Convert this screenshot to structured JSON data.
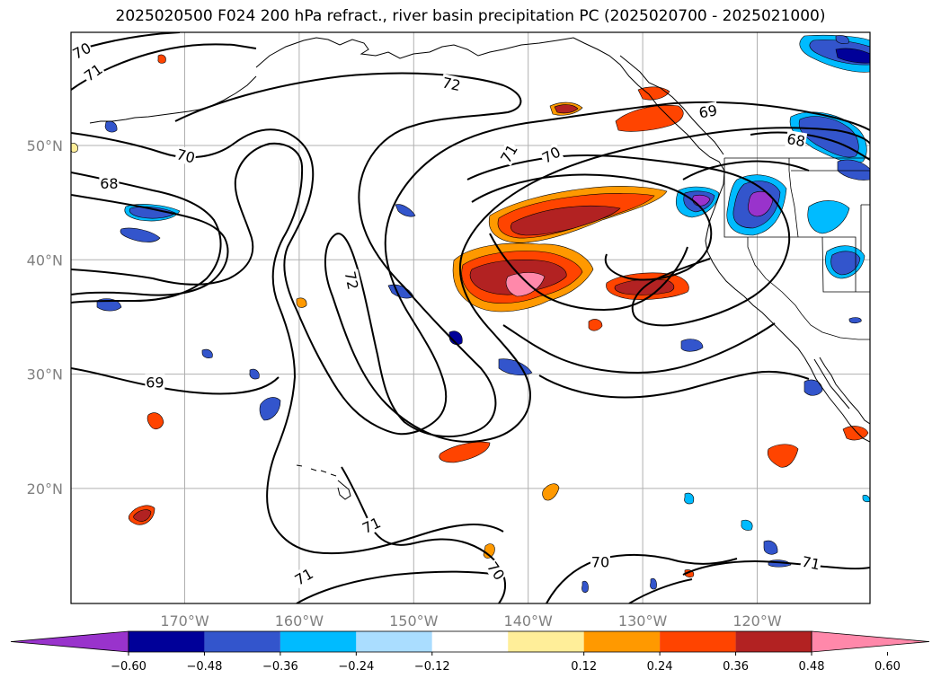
{
  "title": "2025020500 F024 200 hPa refract., river basin precipitation PC (2025020700 - 2025021000)",
  "lat_axis": [
    {
      "label": "50°N",
      "value": 50
    },
    {
      "label": "40°N",
      "value": 40
    },
    {
      "label": "30°N",
      "value": 30
    },
    {
      "label": "20°N",
      "value": 20
    }
  ],
  "lon_axis": [
    {
      "label": "170°W",
      "value": -170
    },
    {
      "label": "160°W",
      "value": -160
    },
    {
      "label": "150°W",
      "value": -150
    },
    {
      "label": "140°W",
      "value": -140
    },
    {
      "label": "130°W",
      "value": -130
    },
    {
      "label": "120°W",
      "value": -120
    }
  ],
  "contour_labels": [
    {
      "text": "70",
      "lon": -179.0,
      "lat": 58.3,
      "rot": -28
    },
    {
      "text": "71",
      "lon": -178.0,
      "lat": 56.4,
      "rot": -35
    },
    {
      "text": "72",
      "lon": -146.7,
      "lat": 55.4,
      "rot": 12
    },
    {
      "text": "70",
      "lon": -169.9,
      "lat": 49.1,
      "rot": 14
    },
    {
      "text": "68",
      "lon": -176.6,
      "lat": 46.7,
      "rot": 0
    },
    {
      "text": "72",
      "lon": -155.4,
      "lat": 38.2,
      "rot": 78
    },
    {
      "text": "69",
      "lon": -172.6,
      "lat": 29.3,
      "rot": 0
    },
    {
      "text": "71",
      "lon": -141.7,
      "lat": 49.3,
      "rot": -60
    },
    {
      "text": "70",
      "lon": -138.0,
      "lat": 49.2,
      "rot": -28
    },
    {
      "text": "69",
      "lon": -124.3,
      "lat": 53.0,
      "rot": -10
    },
    {
      "text": "68",
      "lon": -116.6,
      "lat": 50.5,
      "rot": 10
    },
    {
      "text": "71",
      "lon": -153.7,
      "lat": 16.8,
      "rot": -25
    },
    {
      "text": "71",
      "lon": -159.6,
      "lat": 12.3,
      "rot": -30
    },
    {
      "text": "70",
      "lon": -142.8,
      "lat": 12.8,
      "rot": 55
    },
    {
      "text": "70",
      "lon": -133.7,
      "lat": 13.6,
      "rot": 0
    },
    {
      "text": "71",
      "lon": -115.3,
      "lat": 13.5,
      "rot": 12
    }
  ],
  "colorbar": {
    "ticks": [
      "−0.60",
      "−0.48",
      "−0.36",
      "−0.24",
      "−0.12",
      "0.12",
      "0.24",
      "0.36",
      "0.48",
      "0.60"
    ],
    "colors": [
      "#9933cc",
      "#000099",
      "#3355cc",
      "#00bbff",
      "#aaddff",
      "#ffffff",
      "#ffee99",
      "#ff9900",
      "#ff4400",
      "#b22222",
      "#ff88aa"
    ]
  }
}
